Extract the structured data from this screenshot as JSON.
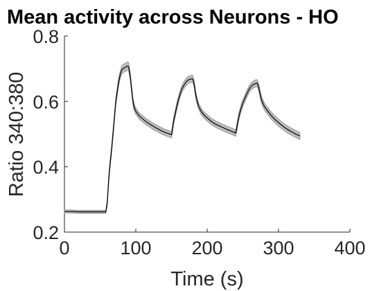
{
  "chart_data": {
    "type": "line",
    "title": "Mean activity across Neurons - HO",
    "xlabel": "Time (s)",
    "ylabel": "Ratio 340:380",
    "xlim": [
      0,
      400
    ],
    "ylim": [
      0.2,
      0.8
    ],
    "xticks": [
      "0",
      "100",
      "200",
      "300",
      "400"
    ],
    "yticks": [
      "0.2",
      "0.4",
      "0.6",
      "0.8"
    ],
    "grid": false,
    "line_color": "#000000",
    "band_color": "#bdbdbd",
    "series": [
      {
        "x": [
          0,
          10,
          20,
          30,
          40,
          50,
          58,
          60,
          62,
          64,
          66,
          68,
          70,
          72,
          74,
          76,
          78,
          80,
          82,
          84,
          86,
          88,
          89,
          90,
          92,
          94,
          96,
          98,
          100,
          105,
          110,
          115,
          120,
          125,
          130,
          135,
          140,
          145,
          150,
          151,
          153,
          155,
          158,
          161,
          164,
          167,
          170,
          173,
          176,
          179,
          180,
          182,
          184,
          186,
          188,
          192,
          197,
          205,
          212,
          220,
          228,
          236,
          240,
          242,
          244,
          247,
          250,
          253,
          256,
          259,
          262,
          265,
          268,
          270,
          272,
          274,
          276,
          280,
          285,
          290,
          295,
          300,
          305,
          310,
          315,
          320,
          325,
          330
        ],
        "y": [
          0.263,
          0.263,
          0.262,
          0.262,
          0.262,
          0.262,
          0.262,
          0.29,
          0.36,
          0.41,
          0.45,
          0.5,
          0.55,
          0.6,
          0.63,
          0.66,
          0.68,
          0.695,
          0.7,
          0.703,
          0.705,
          0.708,
          0.708,
          0.705,
          0.68,
          0.64,
          0.6,
          0.58,
          0.57,
          0.555,
          0.546,
          0.537,
          0.53,
          0.523,
          0.517,
          0.511,
          0.506,
          0.502,
          0.498,
          0.51,
          0.54,
          0.56,
          0.59,
          0.615,
          0.635,
          0.648,
          0.658,
          0.665,
          0.668,
          0.669,
          0.668,
          0.65,
          0.62,
          0.6,
          0.585,
          0.568,
          0.555,
          0.54,
          0.53,
          0.522,
          0.514,
          0.507,
          0.503,
          0.525,
          0.55,
          0.575,
          0.595,
          0.61,
          0.625,
          0.638,
          0.647,
          0.652,
          0.655,
          0.656,
          0.645,
          0.625,
          0.605,
          0.585,
          0.57,
          0.556,
          0.545,
          0.535,
          0.526,
          0.518,
          0.511,
          0.505,
          0.499,
          0.494
        ],
        "sem": [
          0.005,
          0.005,
          0.005,
          0.005,
          0.005,
          0.005,
          0.005,
          0.01,
          0.012,
          0.012,
          0.012,
          0.012,
          0.012,
          0.012,
          0.012,
          0.012,
          0.012,
          0.013,
          0.013,
          0.013,
          0.013,
          0.013,
          0.013,
          0.013,
          0.012,
          0.012,
          0.011,
          0.01,
          0.01,
          0.01,
          0.01,
          0.01,
          0.01,
          0.01,
          0.01,
          0.01,
          0.01,
          0.01,
          0.01,
          0.011,
          0.011,
          0.011,
          0.011,
          0.011,
          0.011,
          0.011,
          0.011,
          0.011,
          0.011,
          0.011,
          0.011,
          0.011,
          0.011,
          0.01,
          0.01,
          0.01,
          0.01,
          0.01,
          0.01,
          0.01,
          0.01,
          0.01,
          0.01,
          0.011,
          0.011,
          0.011,
          0.011,
          0.011,
          0.011,
          0.011,
          0.011,
          0.011,
          0.011,
          0.011,
          0.011,
          0.011,
          0.011,
          0.011,
          0.011,
          0.011,
          0.011,
          0.011,
          0.011,
          0.011,
          0.011,
          0.011,
          0.011,
          0.011
        ]
      }
    ]
  }
}
